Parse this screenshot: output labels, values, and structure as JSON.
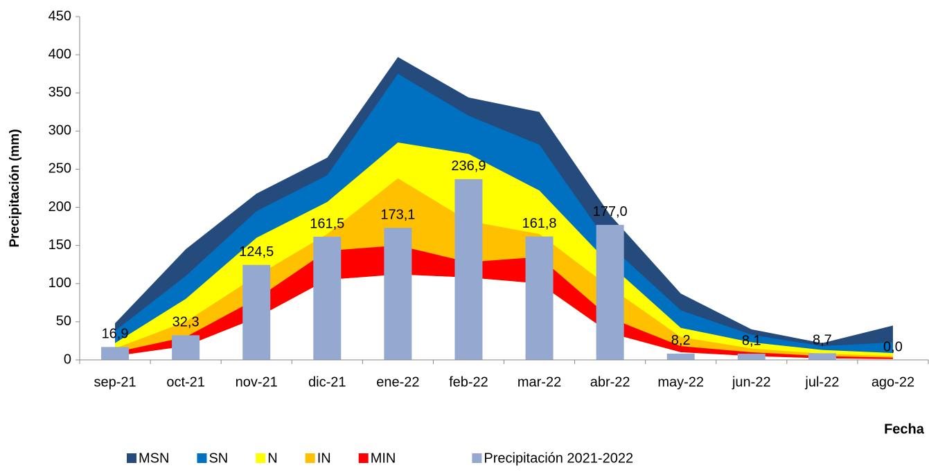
{
  "chart_data": {
    "type": "area",
    "x_label": "Fecha",
    "y_label": "Precipitación (mm)",
    "categories": [
      "sep-21",
      "oct-21",
      "nov-21",
      "dic-21",
      "ene-22",
      "feb-22",
      "mar-22",
      "abr-22",
      "may-22",
      "jun-22",
      "jul-22",
      "ago-22"
    ],
    "ylim": [
      0,
      450
    ],
    "yticks": [
      0,
      50,
      100,
      150,
      200,
      250,
      300,
      350,
      400,
      450
    ],
    "series": [
      {
        "name": "MSN",
        "type": "area",
        "color": "#254a7c",
        "values": [
          48,
          145,
          218,
          265,
          397,
          344,
          325,
          190,
          87,
          40,
          22,
          45
        ]
      },
      {
        "name": "SN",
        "type": "area",
        "color": "#0070c0",
        "values": [
          38,
          110,
          195,
          242,
          375,
          320,
          282,
          150,
          65,
          33,
          18,
          23
        ]
      },
      {
        "name": "N",
        "type": "area",
        "color": "#ffff00",
        "values": [
          22,
          80,
          160,
          207,
          285,
          270,
          222,
          125,
          42,
          23,
          13,
          9
        ]
      },
      {
        "name": "IN",
        "type": "area",
        "color": "#ffc000",
        "values": [
          15,
          50,
          110,
          165,
          238,
          182,
          165,
          95,
          30,
          15,
          8,
          5
        ]
      },
      {
        "name": "MIN",
        "type": "area",
        "color": "#ff0000",
        "values": [
          10,
          30,
          80,
          143,
          150,
          128,
          135,
          55,
          18,
          10,
          5,
          3
        ],
        "base": [
          5,
          18,
          55,
          105,
          112,
          108,
          100,
          35,
          10,
          5,
          2,
          1
        ]
      },
      {
        "name": "Precipitación 2021-2022",
        "type": "bar",
        "color": "#95a9d0",
        "values": [
          16.9,
          32.3,
          124.5,
          161.5,
          173.1,
          236.9,
          161.8,
          177.0,
          8.2,
          8.1,
          8.7,
          0.0
        ],
        "value_labels": [
          "16,9",
          "32,3",
          "124,5",
          "161,5",
          "173,1",
          "236,9",
          "161,8",
          "177,0",
          "8,2",
          "8,1",
          "8,7",
          "0,0"
        ]
      }
    ]
  }
}
